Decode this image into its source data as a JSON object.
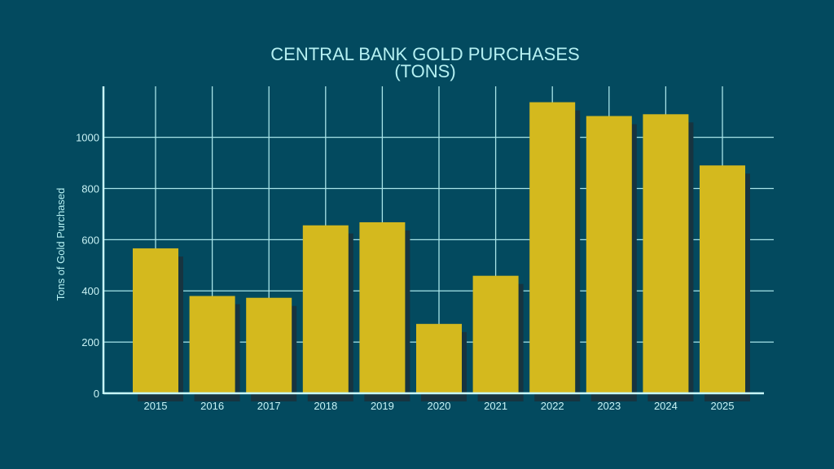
{
  "chart_data": {
    "type": "bar",
    "title": "CENTRAL BANK GOLD PURCHASES",
    "subtitle": "(TONS)",
    "xlabel": "",
    "ylabel": "Tons of Gold Purchased",
    "categories": [
      "2015",
      "2016",
      "2017",
      "2018",
      "2019",
      "2020",
      "2021",
      "2022",
      "2023",
      "2024",
      "2025"
    ],
    "values": [
      566,
      380,
      373,
      656,
      668,
      271,
      459,
      1137,
      1083,
      1090,
      890
    ],
    "ylim": [
      0,
      1200
    ],
    "yticks": [
      0,
      200,
      400,
      600,
      800,
      1000
    ],
    "grid": true,
    "colors": {
      "background": "#034a5f",
      "bar": "#d4b91e",
      "shadow": "#173440",
      "grid": "#a8e4e8",
      "axis": "#c8f8fa"
    }
  }
}
